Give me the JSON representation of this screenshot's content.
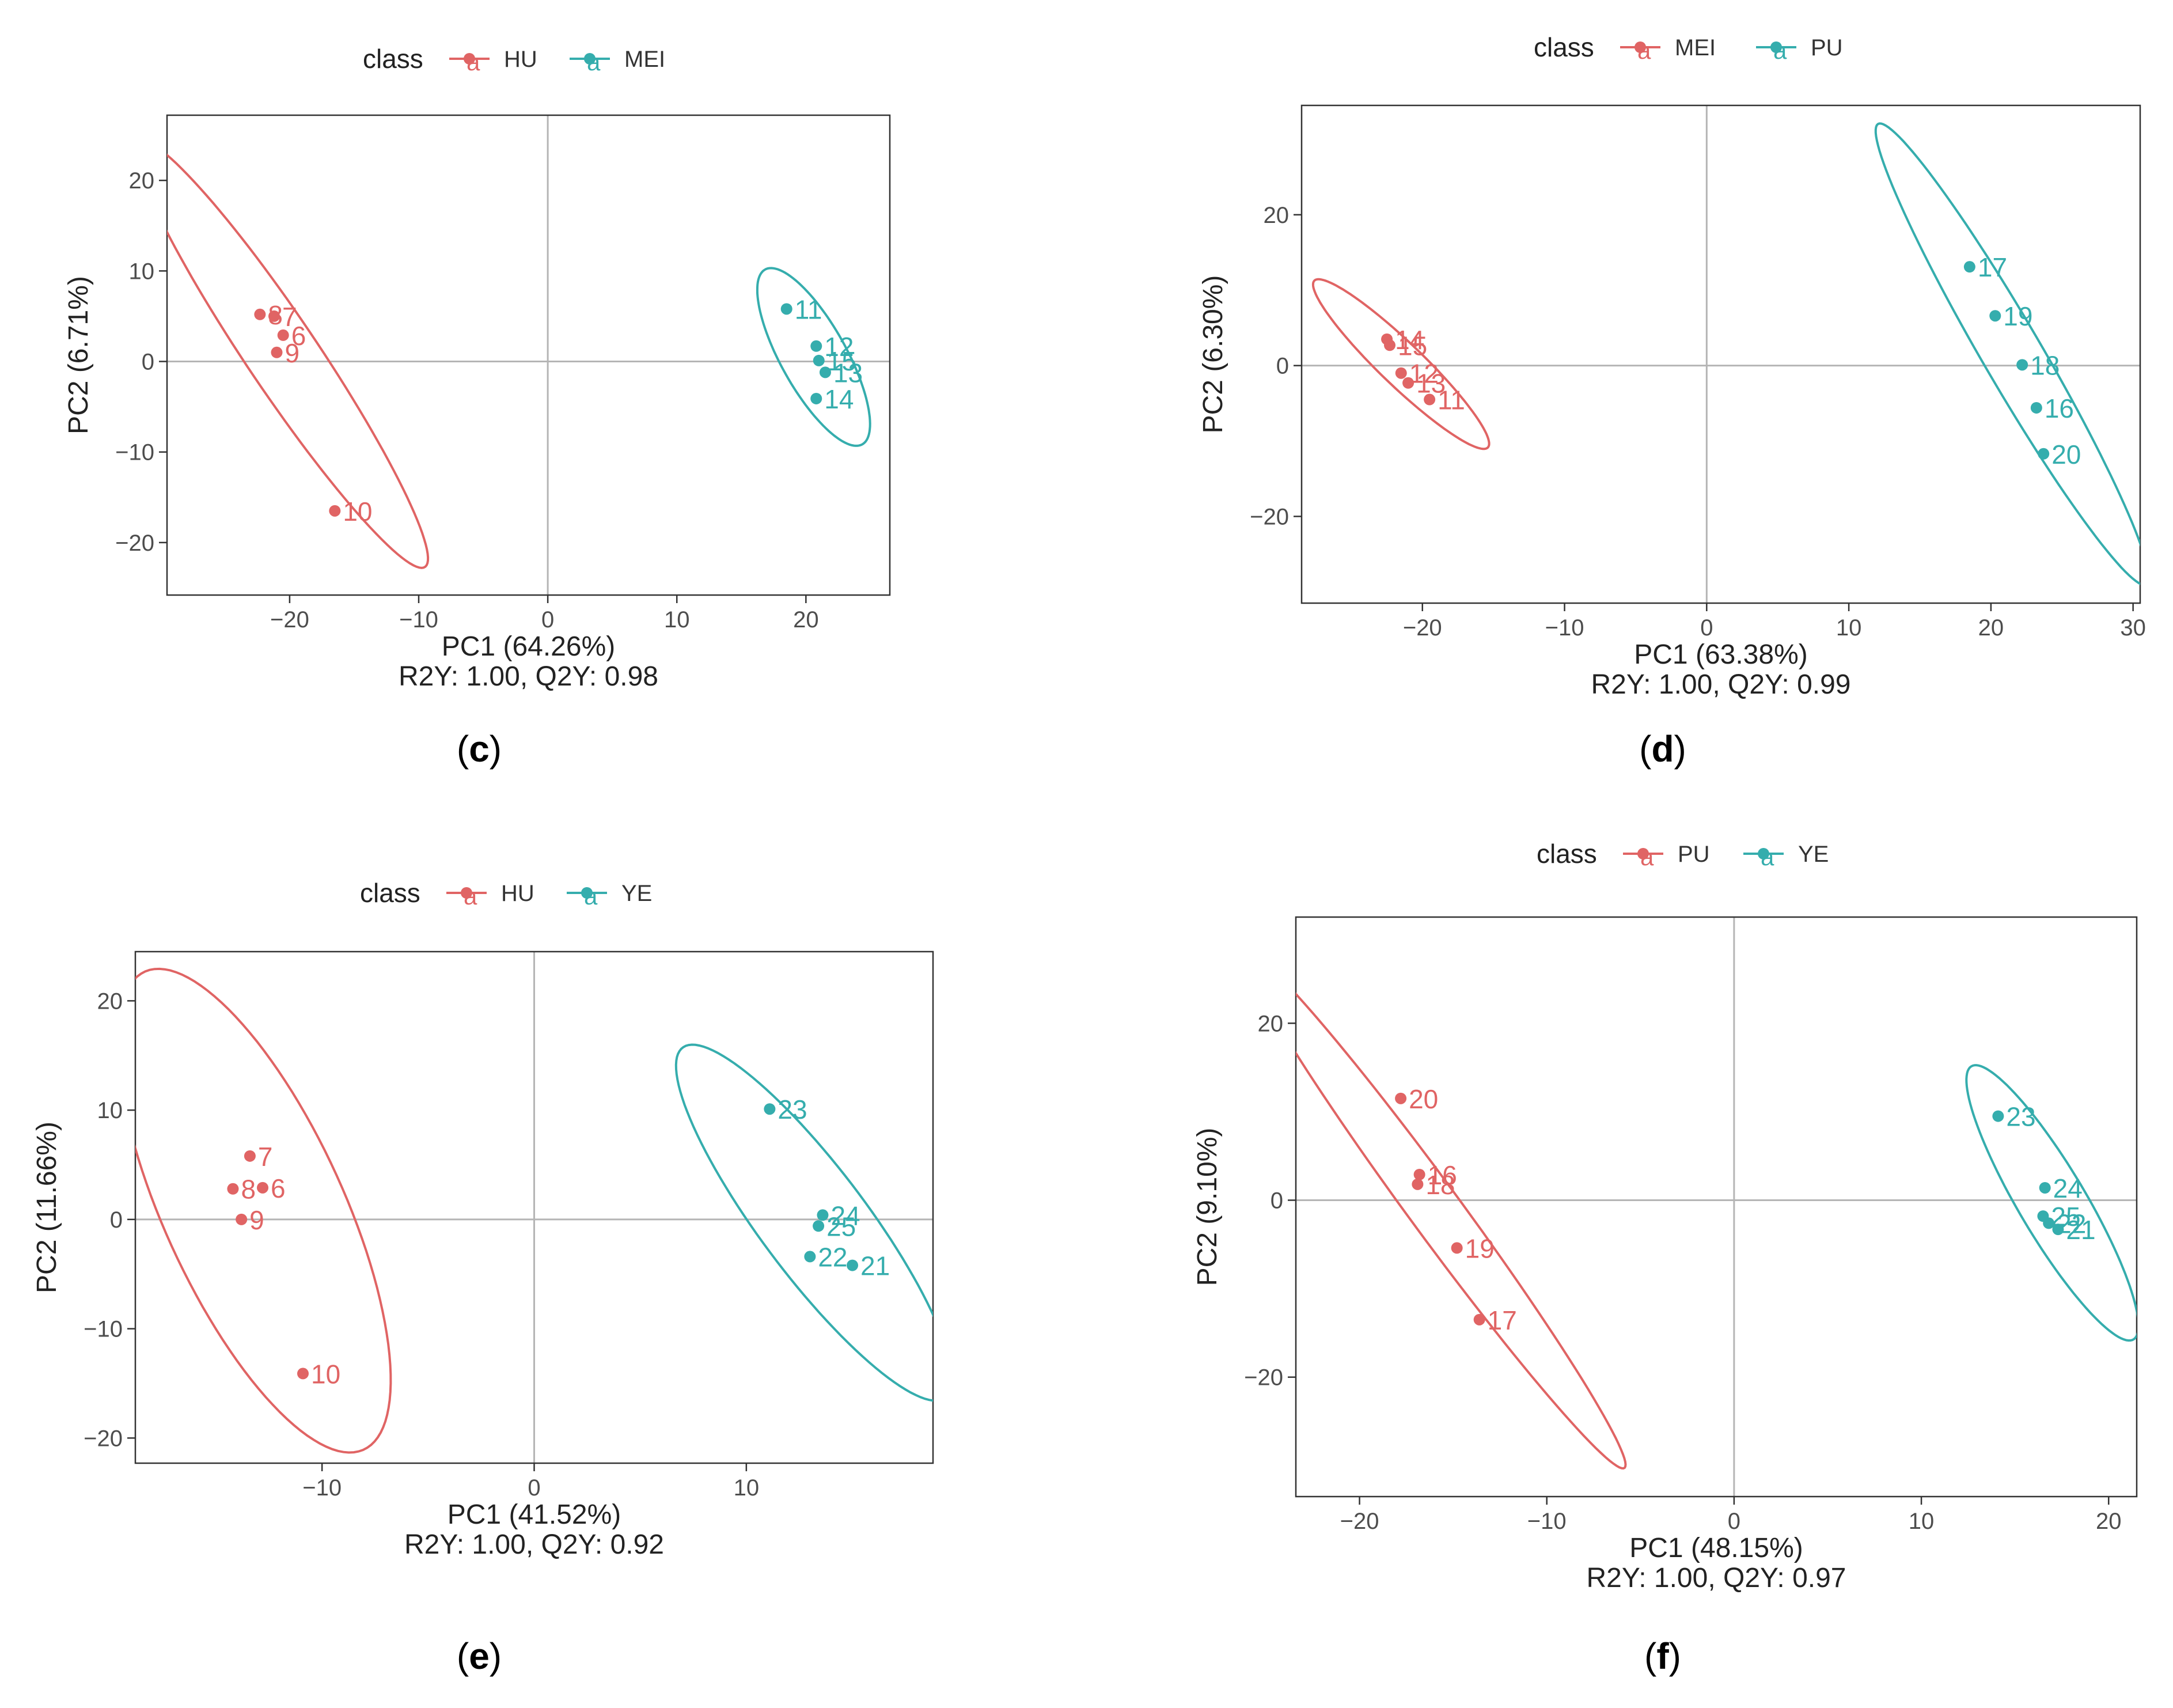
{
  "figure": {
    "legend_title": "class",
    "legend_key_glyph": "a",
    "colors": {
      "group1": "#E06464",
      "group2": "#35ADAD",
      "zero_line": "#b5b5b5",
      "axis_text": "#4d4d4d"
    },
    "panel_labels": [
      {
        "open": "(",
        "letter": "c",
        "close": ")"
      },
      {
        "open": "(",
        "letter": "d",
        "close": ")"
      },
      {
        "open": "(",
        "letter": "e",
        "close": ")"
      },
      {
        "open": "(",
        "letter": "f",
        "close": ")"
      }
    ]
  },
  "chart_data": [
    {
      "type": "scatter",
      "panel": "c",
      "xlabel": "PC1 (64.26%)",
      "ylabel": "PC2 (6.71%)",
      "stats": "R2Y: 1.00, Q2Y: 0.98",
      "legend": [
        "HU",
        "MEI"
      ],
      "xlim": [
        -29.5,
        26.5
      ],
      "ylim": [
        -25.8,
        27.2
      ],
      "xticks": [
        -20,
        -10,
        0,
        10,
        20
      ],
      "xtick_labels": [
        "−20",
        "−10",
        "0",
        "10",
        "20"
      ],
      "yticks": [
        -20,
        -10,
        0,
        10,
        20
      ],
      "ytick_labels": [
        "−20",
        "−10",
        "0",
        "10",
        "20"
      ],
      "series": [
        {
          "name": "HU",
          "ellipse": {
            "cx": -20.6,
            "cy": 0.8,
            "a": 26.0,
            "b": 3.0,
            "angle": -65
          },
          "points": [
            {
              "label": "8",
              "x": -22.3,
              "y": 5.2
            },
            {
              "label": "7",
              "x": -21.2,
              "y": 5.0
            },
            {
              "label": "6",
              "x": -20.5,
              "y": 2.9
            },
            {
              "label": "9",
              "x": -21.0,
              "y": 1.0
            },
            {
              "label": "10",
              "x": -16.5,
              "y": -16.5
            }
          ]
        },
        {
          "name": "MEI",
          "ellipse": {
            "cx": 20.6,
            "cy": 0.5,
            "a": 10.4,
            "b": 2.7,
            "angle": -70
          },
          "points": [
            {
              "label": "11",
              "x": 18.5,
              "y": 5.8
            },
            {
              "label": "12",
              "x": 20.8,
              "y": 1.7
            },
            {
              "label": "15",
              "x": 21.0,
              "y": 0.1
            },
            {
              "label": "13",
              "x": 21.5,
              "y": -1.2
            },
            {
              "label": "14",
              "x": 20.8,
              "y": -4.1
            }
          ]
        }
      ]
    },
    {
      "type": "scatter",
      "panel": "d",
      "xlabel": "PC1 (63.38%)",
      "ylabel": "PC2 (6.30%)",
      "stats": "R2Y: 1.00, Q2Y: 0.99",
      "legend": [
        "MEI",
        "PU"
      ],
      "xlim": [
        -28.5,
        30.5
      ],
      "ylim": [
        -31.5,
        34.5
      ],
      "xticks": [
        -20,
        -10,
        0,
        10,
        20,
        30
      ],
      "xtick_labels": [
        "−20",
        "−10",
        "0",
        "10",
        "20",
        "30"
      ],
      "yticks": [
        -20,
        0,
        20
      ],
      "ytick_labels": [
        "−20",
        "0",
        "20"
      ],
      "series": [
        {
          "name": "MEI",
          "ellipse": {
            "cx": -21.5,
            "cy": 0.2,
            "a": 12.7,
            "b": 1.9,
            "angle": -62
          },
          "points": [
            {
              "label": "14",
              "x": -22.5,
              "y": 3.5
            },
            {
              "label": "15",
              "x": -22.3,
              "y": 2.7
            },
            {
              "label": "12",
              "x": -21.5,
              "y": -1.0
            },
            {
              "label": "13",
              "x": -21.0,
              "y": -2.3
            },
            {
              "label": "11",
              "x": -19.5,
              "y": -4.5
            }
          ]
        },
        {
          "name": "PU",
          "ellipse": {
            "cx": 21.5,
            "cy": 1.5,
            "a": 32.0,
            "b": 2.3,
            "angle": -73
          },
          "points": [
            {
              "label": "17",
              "x": 18.5,
              "y": 13.1
            },
            {
              "label": "19",
              "x": 20.3,
              "y": 6.6
            },
            {
              "label": "18",
              "x": 22.2,
              "y": 0.1
            },
            {
              "label": "16",
              "x": 23.2,
              "y": -5.6
            },
            {
              "label": "20",
              "x": 23.7,
              "y": -11.7
            }
          ]
        }
      ]
    },
    {
      "type": "scatter",
      "panel": "e",
      "xlabel": "PC1 (41.52%)",
      "ylabel": "PC2 (11.66%)",
      "stats": "R2Y: 1.00, Q2Y: 0.92",
      "legend": [
        "HU",
        "YE"
      ],
      "xlim": [
        -18.8,
        18.8
      ],
      "ylim": [
        -22.3,
        24.5
      ],
      "xticks": [
        -10,
        0,
        10
      ],
      "xtick_labels": [
        "−10",
        "0",
        "10"
      ],
      "yticks": [
        -20,
        -10,
        0,
        10,
        20
      ],
      "ytick_labels": [
        "−20",
        "−10",
        "0",
        "10",
        "20"
      ],
      "series": [
        {
          "name": "HU",
          "ellipse": {
            "cx": -13.2,
            "cy": 0.8,
            "a": 22.6,
            "b": 4.5,
            "angle": -78
          },
          "points": [
            {
              "label": "7",
              "x": -13.4,
              "y": 5.8
            },
            {
              "label": "8",
              "x": -14.2,
              "y": 2.8
            },
            {
              "label": "6",
              "x": -12.8,
              "y": 2.9
            },
            {
              "label": "9",
              "x": -13.8,
              "y": 0.0
            },
            {
              "label": "10",
              "x": -10.9,
              "y": -14.1
            }
          ]
        },
        {
          "name": "YE",
          "ellipse": {
            "cx": 13.2,
            "cy": -0.3,
            "a": 17.3,
            "b": 2.9,
            "angle": -70
          },
          "points": [
            {
              "label": "23",
              "x": 11.1,
              "y": 10.1
            },
            {
              "label": "24",
              "x": 13.6,
              "y": 0.4
            },
            {
              "label": "25",
              "x": 13.4,
              "y": -0.6
            },
            {
              "label": "22",
              "x": 13.0,
              "y": -3.4
            },
            {
              "label": "21",
              "x": 15.0,
              "y": -4.2
            }
          ]
        }
      ]
    },
    {
      "type": "scatter",
      "panel": "f",
      "xlabel": "PC1 (48.15%)",
      "ylabel": "PC2 (9.10%)",
      "stats": "R2Y: 1.00, Q2Y: 0.97",
      "legend": [
        "PU",
        "YE"
      ],
      "xlim": [
        -23.4,
        21.5
      ],
      "ylim": [
        -33.5,
        32.0
      ],
      "xticks": [
        -20,
        -10,
        0,
        10,
        20
      ],
      "xtick_labels": [
        "−20",
        "−10",
        "0",
        "10",
        "20"
      ],
      "yticks": [
        -20,
        0,
        20
      ],
      "ytick_labels": [
        "−20",
        "0",
        "20"
      ],
      "series": [
        {
          "name": "PU",
          "ellipse": {
            "cx": -16.0,
            "cy": -1.0,
            "a": 31.0,
            "b": 1.6,
            "angle": -71
          },
          "points": [
            {
              "label": "20",
              "x": -17.8,
              "y": 11.5
            },
            {
              "label": "16",
              "x": -16.8,
              "y": 2.9
            },
            {
              "label": "18",
              "x": -16.9,
              "y": 1.8
            },
            {
              "label": "19",
              "x": -14.8,
              "y": -5.4
            },
            {
              "label": "17",
              "x": -13.6,
              "y": -13.5
            }
          ]
        },
        {
          "name": "YE",
          "ellipse": {
            "cx": 17.0,
            "cy": -0.3,
            "a": 16.1,
            "b": 2.0,
            "angle": -75
          },
          "points": [
            {
              "label": "23",
              "x": 14.1,
              "y": 9.5
            },
            {
              "label": "24",
              "x": 16.6,
              "y": 1.4
            },
            {
              "label": "25",
              "x": 16.5,
              "y": -1.8
            },
            {
              "label": "22",
              "x": 16.8,
              "y": -2.6
            },
            {
              "label": "21",
              "x": 17.3,
              "y": -3.3
            }
          ]
        }
      ]
    }
  ]
}
